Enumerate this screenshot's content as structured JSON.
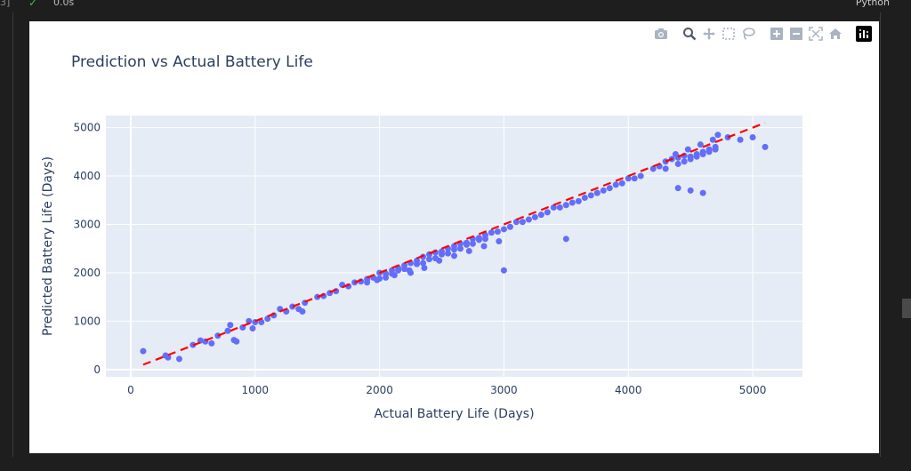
{
  "notebook": {
    "cell_index": "3]",
    "exec_time": "0.0s",
    "kernel": "Python"
  },
  "modebar": {
    "icons": [
      "camera-icon",
      "zoom-icon",
      "pan-icon",
      "box-select-icon",
      "lasso-select-icon",
      "zoom-in-icon",
      "zoom-out-icon",
      "autoscale-icon",
      "reset-axes-icon",
      "plotly-logo-icon"
    ]
  },
  "colors": {
    "marker": "#636efa",
    "line": "#ff0000",
    "plot_bg": "#e5ecf6",
    "text": "#2a3f5f"
  },
  "chart_data": {
    "type": "scatter",
    "title": "Prediction vs Actual Battery Life",
    "xlabel": "Actual Battery Life (Days)",
    "ylabel": "Predicted Battery Life (Days)",
    "xlim": [
      -200,
      5400
    ],
    "ylim": [
      -150,
      5250
    ],
    "xticks": [
      0,
      1000,
      2000,
      3000,
      4000,
      5000
    ],
    "xtick_labels": [
      "0",
      "1000",
      "2000",
      "3000",
      "4000",
      "5000"
    ],
    "yticks": [
      0,
      1000,
      2000,
      3000,
      4000,
      5000
    ],
    "ytick_labels": [
      "0",
      "1000",
      "2000",
      "3000",
      "4000",
      "5000"
    ],
    "grid": true,
    "legend": "none",
    "reference_line": {
      "x": [
        100,
        5100
      ],
      "y": [
        100,
        5100
      ],
      "style": "dashed"
    },
    "series": [
      {
        "mode": "markers",
        "x": [
          100,
          280,
          300,
          390,
          500,
          560,
          600,
          650,
          700,
          780,
          800,
          830,
          850,
          900,
          950,
          980,
          1000,
          1050,
          1100,
          1150,
          1200,
          1250,
          1300,
          1350,
          1380,
          1400,
          1500,
          1550,
          1600,
          1650,
          1700,
          1750,
          1800,
          1850,
          1900,
          1950,
          2000,
          2050,
          2100,
          2150,
          2200,
          2250,
          2300,
          2350,
          2400,
          2450,
          2500,
          2550,
          2600,
          2650,
          2700,
          2750,
          2800,
          2850,
          2900,
          2950,
          3000,
          3050,
          3100,
          3200,
          3300,
          3400,
          3500,
          3600,
          3700,
          3800,
          3900,
          4000,
          4100,
          4200,
          4300,
          4350,
          4400,
          4450,
          4500,
          4550,
          4600,
          4650,
          4700,
          4800,
          4900,
          5000,
          5100,
          1980,
          2120,
          2240,
          2360,
          2480,
          2600,
          2720,
          2840,
          2960,
          3000,
          3500,
          4400,
          4500,
          4600,
          2250,
          2050,
          2150,
          2350,
          2450,
          2550,
          2650,
          2750,
          2850,
          1900,
          2000,
          2100,
          2200,
          2300,
          2400,
          2500,
          2600,
          2700,
          2800,
          4300,
          4400,
          4500,
          4600,
          4700,
          4380,
          4480,
          4580,
          4680,
          4720,
          4250,
          4450,
          4550,
          4650,
          3150,
          3250,
          3350,
          3450,
          3550,
          3650,
          3750,
          3850,
          3950,
          4050
        ],
        "y": [
          380,
          290,
          250,
          220,
          510,
          600,
          580,
          540,
          700,
          800,
          920,
          610,
          580,
          870,
          1000,
          850,
          980,
          980,
          1050,
          1120,
          1250,
          1200,
          1300,
          1250,
          1200,
          1380,
          1500,
          1520,
          1580,
          1620,
          1750,
          1720,
          1800,
          1820,
          1870,
          1900,
          2000,
          1980,
          2050,
          2100,
          2150,
          2200,
          2250,
          2330,
          2380,
          2420,
          2440,
          2500,
          2550,
          2600,
          2620,
          2700,
          2720,
          2780,
          2830,
          2850,
          2900,
          2950,
          3050,
          3100,
          3200,
          3350,
          3400,
          3480,
          3600,
          3700,
          3820,
          3950,
          4000,
          4150,
          4300,
          4350,
          4380,
          4420,
          4400,
          4450,
          4500,
          4550,
          4600,
          4800,
          4750,
          4800,
          4600,
          1850,
          1950,
          2050,
          2100,
          2250,
          2350,
          2450,
          2550,
          2650,
          2050,
          2700,
          3750,
          3700,
          3650,
          2000,
          1900,
          2050,
          2200,
          2300,
          2400,
          2500,
          2600,
          2700,
          1800,
          1880,
          1980,
          2080,
          2180,
          2280,
          2380,
          2480,
          2580,
          2680,
          4150,
          4250,
          4350,
          4450,
          4550,
          4450,
          4550,
          4650,
          4750,
          4850,
          4200,
          4300,
          4400,
          4500,
          3050,
          3150,
          3250,
          3350,
          3450,
          3550,
          3650,
          3750,
          3850,
          3950
        ]
      }
    ]
  }
}
